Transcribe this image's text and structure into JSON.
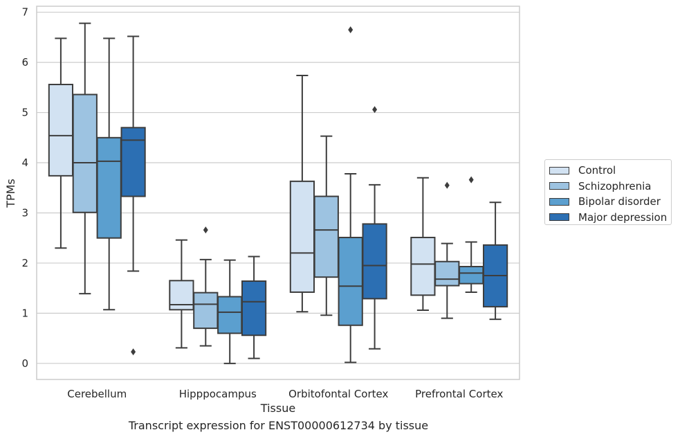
{
  "caption": "Transcript expression for ENST00000612734 by tissue",
  "chart_data": {
    "type": "box",
    "xlabel": "Tissue",
    "ylabel": "TPMs",
    "ylim": [
      -0.32,
      7.12
    ],
    "yticks": [
      "0",
      "1",
      "2",
      "3",
      "4",
      "5",
      "6",
      "7"
    ],
    "grid": true,
    "legend_position": "right",
    "categories": [
      "Cerebellum",
      "Hipppocampus",
      "Orbitofontal Cortex",
      "Prefrontal Cortex"
    ],
    "series": [
      {
        "name": "Control",
        "color": "#d2e2f2",
        "boxes": [
          {
            "whislo": 2.3,
            "q1": 3.74,
            "med": 4.54,
            "q3": 5.56,
            "whishi": 6.48,
            "fliers": []
          },
          {
            "whislo": 0.31,
            "q1": 1.07,
            "med": 1.17,
            "q3": 1.65,
            "whishi": 2.46,
            "fliers": []
          },
          {
            "whislo": 1.03,
            "q1": 1.42,
            "med": 2.2,
            "q3": 3.63,
            "whishi": 5.74,
            "fliers": []
          },
          {
            "whislo": 1.06,
            "q1": 1.36,
            "med": 1.98,
            "q3": 2.51,
            "whishi": 3.7,
            "fliers": []
          }
        ]
      },
      {
        "name": "Schizophrenia",
        "color": "#9dc3e1",
        "boxes": [
          {
            "whislo": 1.39,
            "q1": 3.01,
            "med": 4.0,
            "q3": 5.36,
            "whishi": 6.78,
            "fliers": []
          },
          {
            "whislo": 0.35,
            "q1": 0.7,
            "med": 1.18,
            "q3": 1.41,
            "whishi": 2.07,
            "fliers": [
              2.66
            ]
          },
          {
            "whislo": 0.96,
            "q1": 1.72,
            "med": 2.66,
            "q3": 3.33,
            "whishi": 4.53,
            "fliers": []
          },
          {
            "whislo": 0.9,
            "q1": 1.55,
            "med": 1.68,
            "q3": 2.03,
            "whishi": 2.39,
            "fliers": [
              3.55
            ]
          }
        ]
      },
      {
        "name": "Bipolar disorder",
        "color": "#5b9fcf",
        "boxes": [
          {
            "whislo": 1.07,
            "q1": 2.5,
            "med": 4.03,
            "q3": 4.5,
            "whishi": 6.48,
            "fliers": []
          },
          {
            "whislo": 0.0,
            "q1": 0.6,
            "med": 1.02,
            "q3": 1.33,
            "whishi": 2.06,
            "fliers": []
          },
          {
            "whislo": 0.02,
            "q1": 0.76,
            "med": 1.54,
            "q3": 2.51,
            "whishi": 3.78,
            "fliers": [
              6.65
            ]
          },
          {
            "whislo": 1.42,
            "q1": 1.59,
            "med": 1.8,
            "q3": 1.93,
            "whishi": 2.42,
            "fliers": [
              3.66
            ]
          }
        ]
      },
      {
        "name": "Major depression",
        "color": "#2c6fb3",
        "boxes": [
          {
            "whislo": 1.84,
            "q1": 3.33,
            "med": 4.45,
            "q3": 4.7,
            "whishi": 6.52,
            "fliers": [
              0.23
            ]
          },
          {
            "whislo": 0.1,
            "q1": 0.56,
            "med": 1.23,
            "q3": 1.64,
            "whishi": 2.13,
            "fliers": []
          },
          {
            "whislo": 0.29,
            "q1": 1.29,
            "med": 1.95,
            "q3": 2.78,
            "whishi": 3.56,
            "fliers": [
              5.06
            ]
          },
          {
            "whislo": 0.88,
            "q1": 1.13,
            "med": 1.75,
            "q3": 2.36,
            "whishi": 3.21,
            "fliers": []
          }
        ]
      }
    ]
  }
}
